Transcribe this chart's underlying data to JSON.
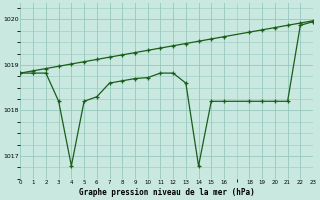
{
  "background_color": "#c8e8e0",
  "grid_color": "#98c8be",
  "line_color": "#1a5e1a",
  "xlabel": "Graphe pression niveau de la mer (hPa)",
  "xlim": [
    0,
    23
  ],
  "ylim": [
    1016.5,
    1020.35
  ],
  "yticks": [
    1017,
    1018,
    1019,
    1020
  ],
  "xtick_positions": [
    0,
    1,
    2,
    3,
    4,
    5,
    6,
    7,
    8,
    9,
    10,
    11,
    12,
    13,
    14,
    15,
    16,
    18,
    19,
    20,
    21,
    22,
    23
  ],
  "xtick_labels": [
    "0",
    "1",
    "2",
    "3",
    "4",
    "5",
    "6",
    "7",
    "8",
    "9",
    "10",
    "11",
    "12",
    "13",
    "14",
    "15",
    "16",
    "18",
    "19",
    "20",
    "21",
    "22",
    "23"
  ],
  "series1_x": [
    0,
    1,
    2,
    3,
    4,
    5,
    6,
    7,
    8,
    9,
    10,
    11,
    12,
    13,
    14,
    15,
    16,
    18,
    19,
    20,
    21,
    22,
    23
  ],
  "series1_y": [
    1018.82,
    1018.87,
    1018.92,
    1018.97,
    1019.02,
    1019.07,
    1019.12,
    1019.17,
    1019.22,
    1019.27,
    1019.32,
    1019.37,
    1019.42,
    1019.47,
    1019.52,
    1019.57,
    1019.62,
    1019.72,
    1019.77,
    1019.82,
    1019.87,
    1019.92,
    1019.97
  ],
  "series2_x": [
    0,
    1,
    2,
    3,
    4,
    5,
    6,
    7,
    8,
    9,
    10,
    11,
    12,
    13,
    14,
    15,
    16,
    18,
    19,
    20,
    21,
    22,
    23
  ],
  "series2_y": [
    1018.82,
    1018.82,
    1018.82,
    1018.2,
    1016.78,
    1018.2,
    1018.3,
    1018.6,
    1018.65,
    1018.7,
    1018.72,
    1018.82,
    1018.82,
    1018.6,
    1016.78,
    1018.2,
    1018.2,
    1018.2,
    1018.2,
    1018.2,
    1018.2,
    1019.87,
    1019.95
  ]
}
